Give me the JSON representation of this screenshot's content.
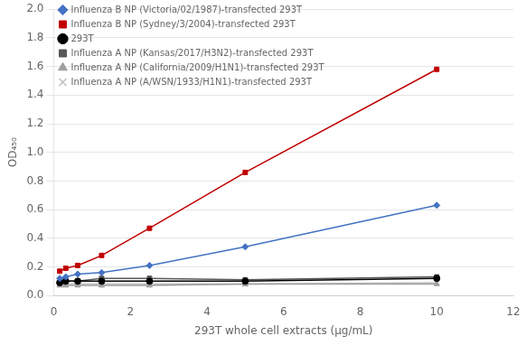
{
  "chart_data": {
    "type": "line",
    "x_label": "293T whole cell extracts (μg/mL)",
    "y_label": "OD₄₅₀",
    "x": [
      0.156,
      0.313,
      0.625,
      1.25,
      2.5,
      5.0,
      10.0
    ],
    "series": [
      {
        "name": "Influenza B NP (Victoria/02/1987)-transfected 293T",
        "color": "#4472C4",
        "marker": "diamond",
        "line_style": "solid",
        "values": [
          0.12,
          0.13,
          0.15,
          0.16,
          0.21,
          0.34,
          0.63
        ]
      },
      {
        "name": "Influenza B NP (Sydney/3/2004)-transfected 293T",
        "color": "#C00000",
        "marker": "square",
        "line_style": "solid",
        "values": [
          0.17,
          0.19,
          0.21,
          0.28,
          0.47,
          0.86,
          1.58
        ]
      },
      {
        "name": "293T",
        "color": "#000000",
        "marker": "circle",
        "line_style": "solid",
        "values": [
          0.09,
          0.1,
          0.1,
          0.1,
          0.1,
          0.1,
          0.12
        ]
      },
      {
        "name": "Influenza A NP (Kansas/2017/H3N2)-transfected 293T",
        "color": "#595959",
        "marker": "square",
        "line_style": "solid",
        "values": [
          0.09,
          0.1,
          0.1,
          0.12,
          0.12,
          0.11,
          0.13
        ]
      },
      {
        "name": "Influenza A NP (California/2009/H1N1)-transfected 293T",
        "color": "#9E9E9E",
        "marker": "triangle",
        "line_style": "solid",
        "values": [
          0.07,
          0.07,
          0.07,
          0.07,
          0.07,
          0.08,
          0.08
        ]
      },
      {
        "name": "Influenza A NP (A/WSN/1933/H1N1)-transfected 293T",
        "color": "#BFBFBF",
        "marker": "x",
        "line_style": "solid",
        "values": [
          0.08,
          0.08,
          0.08,
          0.08,
          0.08,
          0.08,
          0.09
        ]
      }
    ],
    "xlim": [
      0,
      12
    ],
    "xticks": [
      0,
      2,
      4,
      6,
      8,
      10,
      12
    ],
    "ylim": [
      0,
      2
    ],
    "yticks": [
      {
        "value": 0,
        "label": "0.0"
      },
      0.2,
      0.4,
      0.6,
      0.8,
      {
        "value": 1.0,
        "label": "1.0"
      },
      1.2,
      1.4,
      1.6,
      1.8,
      {
        "value": 2.0,
        "label": "2.0"
      }
    ],
    "grid": "y",
    "legend": "upper left"
  }
}
